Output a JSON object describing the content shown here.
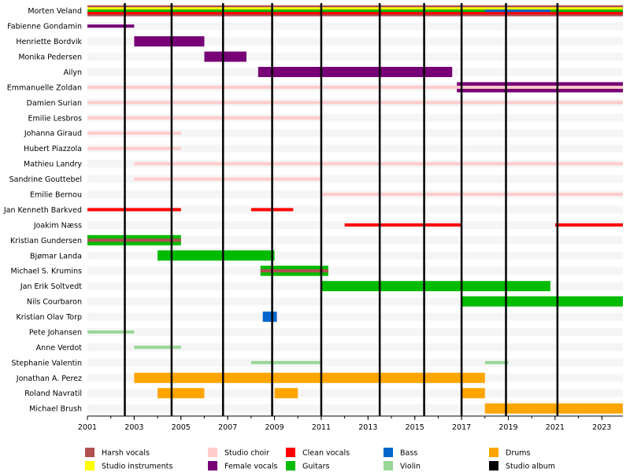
{
  "chart_data": {
    "type": "timeline",
    "x_range": [
      2001,
      2023.9
    ],
    "x_ticks": [
      2001,
      2003,
      2005,
      2007,
      2009,
      2011,
      2013,
      2015,
      2017,
      2019,
      2021,
      2023
    ],
    "x_tick_labels": [
      "2001",
      "2003",
      "2005",
      "2007",
      "2009",
      "2011",
      "2013",
      "2015",
      "2017",
      "2019",
      "2021",
      "2023"
    ],
    "albums": [
      2002.6,
      2004.6,
      2006.8,
      2008.9,
      2011.0,
      2013.5,
      2015.4,
      2017.0,
      2018.9,
      2021.1
    ],
    "roles": {
      "harsh": {
        "label": "Harsh vocals",
        "color": "#b05050"
      },
      "instr": {
        "label": "Studio instruments",
        "color": "#ffff00"
      },
      "choir": {
        "label": "Studio choir",
        "color": "#ffcccc"
      },
      "female": {
        "label": "Female vocals",
        "color": "#770077"
      },
      "clean": {
        "label": "Clean vocals",
        "color": "#ff0000"
      },
      "guitar": {
        "label": "Guitars",
        "color": "#00bb00"
      },
      "bass": {
        "label": "Bass",
        "color": "#0066cc"
      },
      "violin": {
        "label": "Violin",
        "color": "#99d699"
      },
      "drums": {
        "label": "Drums",
        "color": "#ffa500"
      },
      "album": {
        "label": "Studio album",
        "color": "#000000"
      }
    },
    "legend_order": [
      "harsh",
      "instr",
      "choir",
      "female",
      "clean",
      "guitar",
      "bass",
      "violin",
      "drums",
      "album"
    ],
    "members": [
      {
        "name": "Morten Veland",
        "bars": [
          {
            "role": "harsh",
            "start": 2001,
            "end": 2023.9,
            "band": "top"
          },
          {
            "role": "instr",
            "start": 2001,
            "end": 2023.9,
            "band": "middle"
          },
          {
            "role": "guitar",
            "start": 2001,
            "end": 2023.9,
            "band": "middle2"
          },
          {
            "role": "bass",
            "start": 2018.0,
            "end": 2020.8,
            "band": "middle2"
          },
          {
            "role": "clean",
            "start": 2001,
            "end": 2023.9,
            "band": "bottom"
          }
        ]
      },
      {
        "name": "Fabienne Gondamin",
        "bars": [
          {
            "role": "female",
            "start": 2001,
            "end": 2003.0,
            "band": "thin"
          }
        ]
      },
      {
        "name": "Henriette Bordvik",
        "bars": [
          {
            "role": "female",
            "start": 2003.0,
            "end": 2006.0,
            "band": "full"
          }
        ]
      },
      {
        "name": "Monika Pedersen",
        "bars": [
          {
            "role": "female",
            "start": 2006.0,
            "end": 2007.8,
            "band": "full"
          }
        ]
      },
      {
        "name": "Ailyn",
        "bars": [
          {
            "role": "female",
            "start": 2008.3,
            "end": 2016.6,
            "band": "full"
          }
        ]
      },
      {
        "name": "Emmanuelle Zoldan",
        "bars": [
          {
            "role": "choir",
            "start": 2001,
            "end": 2016.8,
            "band": "thin"
          },
          {
            "role": "female",
            "start": 2016.8,
            "end": 2023.9,
            "band": "full"
          },
          {
            "role": "choir",
            "start": 2016.8,
            "end": 2023.9,
            "band": "thin"
          }
        ]
      },
      {
        "name": "Damien Surian",
        "bars": [
          {
            "role": "choir",
            "start": 2001,
            "end": 2023.9,
            "band": "thin"
          }
        ]
      },
      {
        "name": "Emilie Lesbros",
        "bars": [
          {
            "role": "choir",
            "start": 2001,
            "end": 2011.0,
            "band": "thin"
          }
        ]
      },
      {
        "name": "Johanna Giraud",
        "bars": [
          {
            "role": "choir",
            "start": 2001,
            "end": 2005.0,
            "band": "thin"
          }
        ]
      },
      {
        "name": "Hubert Piazzola",
        "bars": [
          {
            "role": "choir",
            "start": 2001,
            "end": 2005.0,
            "band": "thin"
          }
        ]
      },
      {
        "name": "Mathieu Landry",
        "bars": [
          {
            "role": "choir",
            "start": 2003.0,
            "end": 2023.9,
            "band": "thin"
          }
        ]
      },
      {
        "name": "Sandrine Gouttebel",
        "bars": [
          {
            "role": "choir",
            "start": 2003.0,
            "end": 2011.0,
            "band": "thin"
          }
        ]
      },
      {
        "name": "Emilie Bernou",
        "bars": [
          {
            "role": "choir",
            "start": 2011.0,
            "end": 2023.9,
            "band": "thin"
          }
        ]
      },
      {
        "name": "Jan Kenneth Barkved",
        "bars": [
          {
            "role": "clean",
            "start": 2001,
            "end": 2005.0,
            "band": "thin"
          },
          {
            "role": "clean",
            "start": 2008.0,
            "end": 2009.8,
            "band": "thin"
          }
        ]
      },
      {
        "name": "Joakim Næss",
        "bars": [
          {
            "role": "clean",
            "start": 2012.0,
            "end": 2017.0,
            "band": "thin"
          },
          {
            "role": "clean",
            "start": 2021.0,
            "end": 2023.9,
            "band": "thin"
          }
        ]
      },
      {
        "name": "Kristian Gundersen",
        "bars": [
          {
            "role": "guitar",
            "start": 2001,
            "end": 2005.0,
            "band": "full"
          },
          {
            "role": "harsh",
            "start": 2001,
            "end": 2005.0,
            "band": "thin"
          }
        ]
      },
      {
        "name": "Bjømar Landa",
        "bars": [
          {
            "role": "guitar",
            "start": 2004.0,
            "end": 2009.0,
            "band": "full"
          }
        ]
      },
      {
        "name": "Michael S. Krumins",
        "bars": [
          {
            "role": "guitar",
            "start": 2008.4,
            "end": 2011.3,
            "band": "full"
          },
          {
            "role": "harsh",
            "start": 2008.4,
            "end": 2011.3,
            "band": "thin"
          }
        ]
      },
      {
        "name": "Jan Erik Soltvedt",
        "bars": [
          {
            "role": "guitar",
            "start": 2011.0,
            "end": 2020.8,
            "band": "full"
          }
        ]
      },
      {
        "name": "Nils Courbaron",
        "bars": [
          {
            "role": "guitar",
            "start": 2017.0,
            "end": 2023.9,
            "band": "full"
          }
        ]
      },
      {
        "name": "Kristian Olav Torp",
        "bars": [
          {
            "role": "bass",
            "start": 2008.5,
            "end": 2009.1,
            "band": "full"
          }
        ]
      },
      {
        "name": "Pete Johansen",
        "bars": [
          {
            "role": "violin",
            "start": 2001,
            "end": 2003.0,
            "band": "thin"
          }
        ]
      },
      {
        "name": "Anne Verdot",
        "bars": [
          {
            "role": "violin",
            "start": 2003.0,
            "end": 2005.0,
            "band": "thin"
          }
        ]
      },
      {
        "name": "Stephanie Valentin",
        "bars": [
          {
            "role": "violin",
            "start": 2008.0,
            "end": 2011.0,
            "band": "thin"
          },
          {
            "role": "violin",
            "start": 2018.0,
            "end": 2019.0,
            "band": "thin"
          }
        ]
      },
      {
        "name": "Jonathan A. Perez",
        "bars": [
          {
            "role": "drums",
            "start": 2003.0,
            "end": 2018.0,
            "band": "full"
          }
        ]
      },
      {
        "name": "Roland Navratil",
        "bars": [
          {
            "role": "drums",
            "start": 2004.0,
            "end": 2006.0,
            "band": "full"
          },
          {
            "role": "drums",
            "start": 2009.0,
            "end": 2010.0,
            "band": "full"
          },
          {
            "role": "drums",
            "start": 2017.0,
            "end": 2018.0,
            "band": "full"
          }
        ]
      },
      {
        "name": "Michael Brush",
        "bars": [
          {
            "role": "drums",
            "start": 2018.0,
            "end": 2023.9,
            "band": "full"
          }
        ]
      }
    ]
  }
}
